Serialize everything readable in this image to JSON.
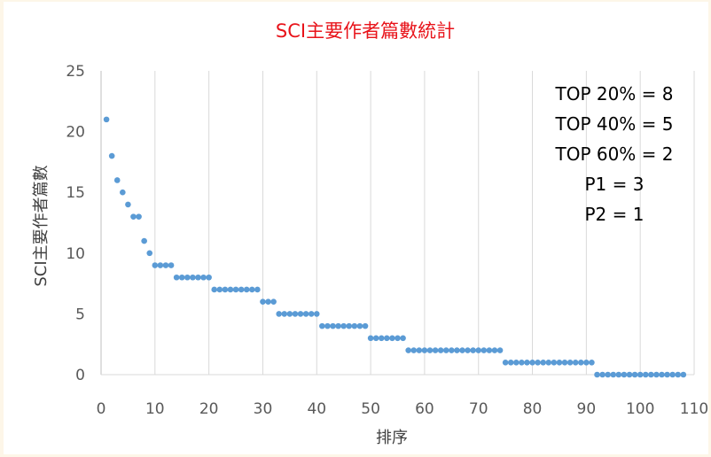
{
  "chart_data": {
    "type": "scatter",
    "title": "SCI主要作者篇數統計",
    "xlabel": "排序",
    "ylabel": "SCI主要作者篇數",
    "xlim": [
      0,
      110
    ],
    "ylim": [
      0,
      25
    ],
    "xticks": [
      0,
      10,
      20,
      30,
      40,
      50,
      60,
      70,
      80,
      90,
      100,
      110
    ],
    "yticks": [
      0,
      5,
      10,
      15,
      20,
      25
    ],
    "xtick_labels": [
      "0",
      "10",
      "20",
      "30",
      "40",
      "50",
      "60",
      "70",
      "80",
      "90",
      "100",
      "110"
    ],
    "ytick_labels": [
      "0",
      "5",
      "10",
      "15",
      "20",
      "25"
    ],
    "grid": "vertical",
    "marker_color": "#5b9bd5",
    "title_color": "#e8131a",
    "annotations": [
      "TOP 20% = 8",
      "TOP 40% = 5",
      "TOP 60% = 2",
      "P1 = 3",
      "P2 = 1"
    ],
    "x": [
      1,
      2,
      3,
      4,
      5,
      6,
      7,
      8,
      9,
      10,
      11,
      12,
      13,
      14,
      15,
      16,
      17,
      18,
      19,
      20,
      21,
      22,
      23,
      24,
      25,
      26,
      27,
      28,
      29,
      30,
      31,
      32,
      33,
      34,
      35,
      36,
      37,
      38,
      39,
      40,
      41,
      42,
      43,
      44,
      45,
      46,
      47,
      48,
      49,
      50,
      51,
      52,
      53,
      54,
      55,
      56,
      57,
      58,
      59,
      60,
      61,
      62,
      63,
      64,
      65,
      66,
      67,
      68,
      69,
      70,
      71,
      72,
      73,
      74,
      75,
      76,
      77,
      78,
      79,
      80,
      81,
      82,
      83,
      84,
      85,
      86,
      87,
      88,
      89,
      90,
      91,
      92,
      93,
      94,
      95,
      96,
      97,
      98,
      99,
      100,
      101,
      102,
      103,
      104,
      105,
      106,
      107,
      108
    ],
    "y": [
      21,
      18,
      16,
      15,
      14,
      13,
      13,
      11,
      10,
      9,
      9,
      9,
      9,
      8,
      8,
      8,
      8,
      8,
      8,
      8,
      7,
      7,
      7,
      7,
      7,
      7,
      7,
      7,
      7,
      6,
      6,
      6,
      5,
      5,
      5,
      5,
      5,
      5,
      5,
      5,
      4,
      4,
      4,
      4,
      4,
      4,
      4,
      4,
      4,
      3,
      3,
      3,
      3,
      3,
      3,
      3,
      2,
      2,
      2,
      2,
      2,
      2,
      2,
      2,
      2,
      2,
      2,
      2,
      2,
      2,
      2,
      2,
      2,
      2,
      1,
      1,
      1,
      1,
      1,
      1,
      1,
      1,
      1,
      1,
      1,
      1,
      1,
      1,
      1,
      1,
      1,
      0,
      0,
      0,
      0,
      0,
      0,
      0,
      0,
      0,
      0,
      0,
      0,
      0,
      0,
      0,
      0,
      0
    ]
  }
}
